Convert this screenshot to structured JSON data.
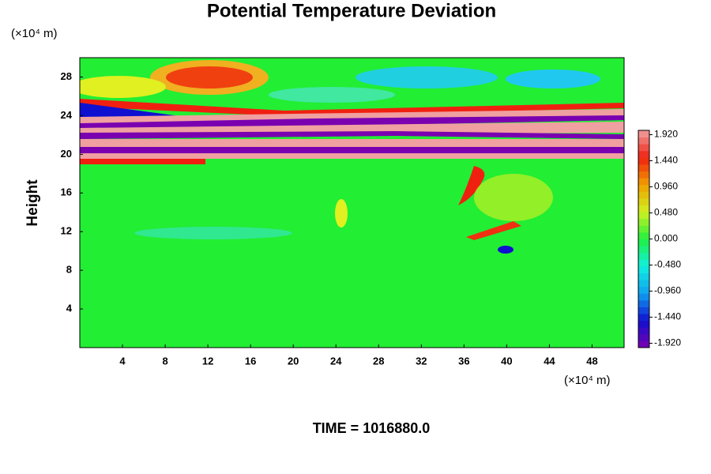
{
  "chart_data": {
    "type": "heatmap",
    "title": "Potential Temperature Deviation",
    "ylabel": "Height",
    "xunit": "(×10⁴ m)",
    "yunit": "(×10⁴ m)",
    "footer": "TIME = 1016880.0",
    "xlim": [
      0,
      51
    ],
    "xticks": [
      4,
      8,
      12,
      16,
      20,
      24,
      28,
      32,
      36,
      40,
      44,
      48
    ],
    "ylim": [
      0,
      30
    ],
    "yticks": [
      4,
      8,
      12,
      16,
      20,
      24,
      28
    ],
    "clim": [
      -2,
      2
    ],
    "cticks": [
      {
        "value": 1.92,
        "label": "1.920"
      },
      {
        "value": 1.44,
        "label": "1.440"
      },
      {
        "value": 0.96,
        "label": "0.960"
      },
      {
        "value": 0.48,
        "label": "0.480"
      },
      {
        "value": 0,
        "label": "0.000"
      },
      {
        "value": -0.48,
        "label": "-0.480"
      },
      {
        "value": -0.96,
        "label": "-0.960"
      },
      {
        "value": -1.44,
        "label": "-1.440"
      },
      {
        "value": -1.92,
        "label": "-1.920"
      }
    ],
    "colormap": [
      "#7a00b0",
      "#1010d0",
      "#10a0f0",
      "#10f0e0",
      "#20f040",
      "#d0f020",
      "#f0a000",
      "#f02010",
      "#f0a0a0"
    ]
  }
}
